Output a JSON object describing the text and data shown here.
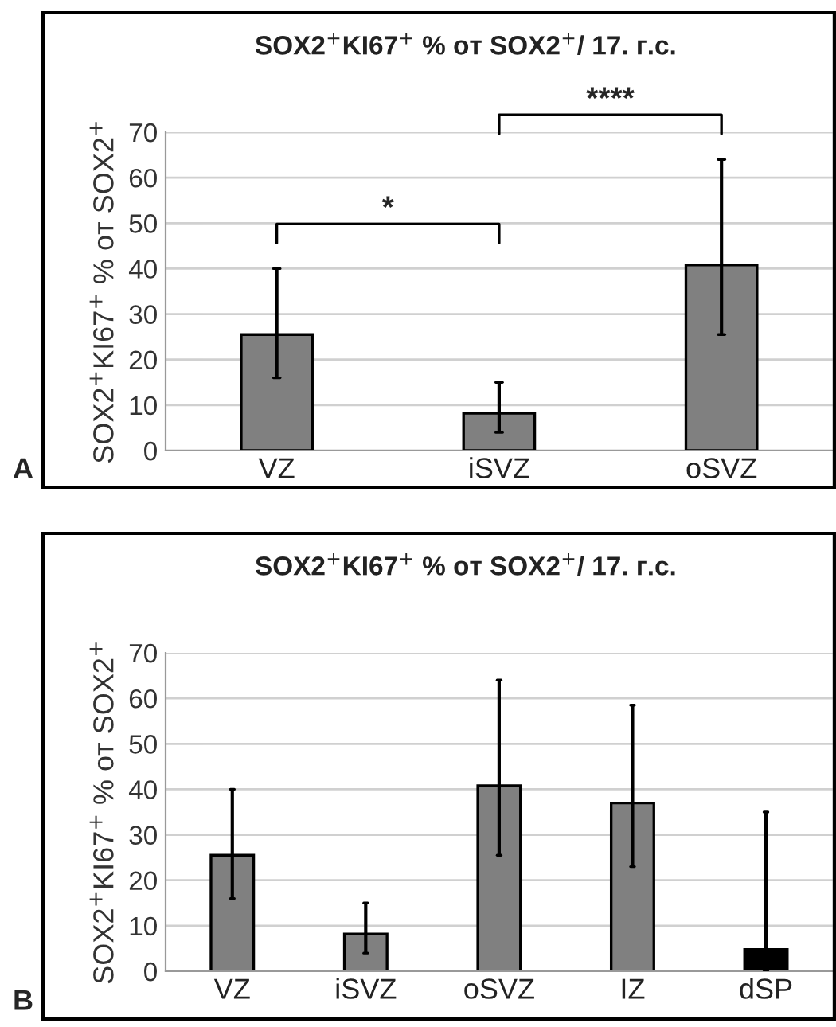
{
  "chart_data": [
    {
      "type": "bar",
      "title": "SOX2$^{+}$KI67$^{+}$ % от SOX2$^{+}$/ 17. г.с.",
      "ylabel": "SOX2$^{+}$KI67$^{+}$ % от SOX2$^{+}$",
      "categories": [
        "VZ",
        "iSVZ",
        "oSVZ"
      ],
      "values": [
        25.5,
        8.2,
        40.8
      ],
      "errors": [
        [
          16,
          40
        ],
        [
          4,
          15
        ],
        [
          25.5,
          64
        ]
      ],
      "colors": [
        "#808080",
        "#808080",
        "#808080"
      ],
      "ylim": [
        0,
        70
      ],
      "yticks": [
        0,
        10,
        20,
        30,
        40,
        50,
        60,
        70
      ],
      "grid": "y",
      "annotations": [
        "*",
        "****",
        "A"
      ]
    },
    {
      "type": "bar",
      "title": "SOX2$^{+}$KI67$^{+}$ % от SOX2$^{+}$/ 17. г.с.",
      "ylabel": "SOX2$^{+}$KI67$^{+}$ % от SOX2$^{+}$",
      "categories": [
        "VZ",
        "iSVZ",
        "oSVZ",
        "IZ",
        "dSP"
      ],
      "values": [
        25.5,
        8.2,
        40.8,
        37,
        4.8
      ],
      "errors": [
        [
          16,
          40
        ],
        [
          4,
          15
        ],
        [
          25.5,
          64
        ],
        [
          23,
          58.5
        ],
        [
          0,
          35
        ]
      ],
      "colors": [
        "#808080",
        "#808080",
        "#808080",
        "#808080",
        "#000000"
      ],
      "ylim": [
        0,
        70
      ],
      "yticks": [
        0,
        10,
        20,
        30,
        40,
        50,
        60,
        70
      ],
      "grid": "y",
      "annotations": [
        "B"
      ]
    }
  ]
}
